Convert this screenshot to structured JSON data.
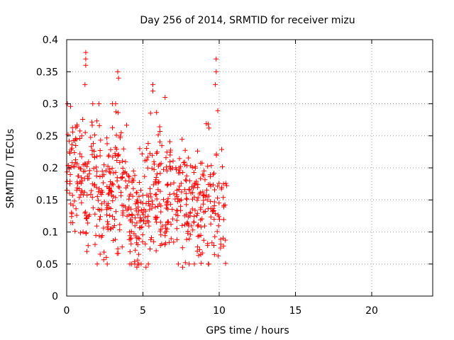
{
  "chart_data": {
    "type": "scatter",
    "title": "Day 256 of 2014, SRMTID for receiver mizu",
    "xlabel": "GPS time / hours",
    "ylabel": "SRMTID / TECUs",
    "xlim": [
      0,
      24
    ],
    "ylim": [
      0,
      0.4
    ],
    "x_ticks": [
      0,
      5,
      10,
      15,
      20
    ],
    "x_tick_labels": [
      "0",
      "5",
      "10",
      "15",
      "20"
    ],
    "y_ticks": [
      0,
      0.05,
      0.1,
      0.15,
      0.2,
      0.25,
      0.3,
      0.35,
      0.4
    ],
    "y_tick_labels": [
      "0",
      "0.05",
      "0.1",
      "0.15",
      "0.2",
      "0.25",
      "0.3",
      "0.35",
      "0.4"
    ],
    "grid": true,
    "legend": "none",
    "marker": "plus",
    "color": "#ff0000",
    "x_range_covered": [
      0,
      10.5
    ],
    "generated_point_count": 700,
    "density_profile": [
      {
        "x": [
          0.0,
          1.0
        ],
        "y_center": 0.19,
        "y_spread": 0.08
      },
      {
        "x": [
          1.0,
          2.0
        ],
        "y_center": 0.18,
        "y_spread": 0.1
      },
      {
        "x": [
          2.0,
          3.0
        ],
        "y_center": 0.16,
        "y_spread": 0.09
      },
      {
        "x": [
          3.0,
          4.0
        ],
        "y_center": 0.17,
        "y_spread": 0.1
      },
      {
        "x": [
          4.0,
          5.0
        ],
        "y_center": 0.12,
        "y_spread": 0.08
      },
      {
        "x": [
          5.0,
          6.0
        ],
        "y_center": 0.15,
        "y_spread": 0.1
      },
      {
        "x": [
          6.0,
          7.0
        ],
        "y_center": 0.17,
        "y_spread": 0.1
      },
      {
        "x": [
          7.0,
          8.0
        ],
        "y_center": 0.14,
        "y_spread": 0.08
      },
      {
        "x": [
          8.0,
          9.0
        ],
        "y_center": 0.13,
        "y_spread": 0.08
      },
      {
        "x": [
          9.0,
          10.5
        ],
        "y_center": 0.15,
        "y_spread": 0.09
      }
    ],
    "highlights": [
      {
        "x": 1.25,
        "y": 0.38
      },
      {
        "x": 1.25,
        "y": 0.37
      },
      {
        "x": 1.25,
        "y": 0.36
      },
      {
        "x": 1.2,
        "y": 0.33
      },
      {
        "x": 3.35,
        "y": 0.35
      },
      {
        "x": 3.4,
        "y": 0.34
      },
      {
        "x": 5.65,
        "y": 0.33
      },
      {
        "x": 5.65,
        "y": 0.32
      },
      {
        "x": 9.8,
        "y": 0.37
      },
      {
        "x": 9.8,
        "y": 0.35
      },
      {
        "x": 9.75,
        "y": 0.33
      },
      {
        "x": 6.45,
        "y": 0.31
      },
      {
        "x": 0.05,
        "y": 0.3
      },
      {
        "x": 4.6,
        "y": 0.045
      },
      {
        "x": 5.2,
        "y": 0.045
      },
      {
        "x": 7.6,
        "y": 0.045
      },
      {
        "x": 2.0,
        "y": 0.05
      }
    ]
  }
}
